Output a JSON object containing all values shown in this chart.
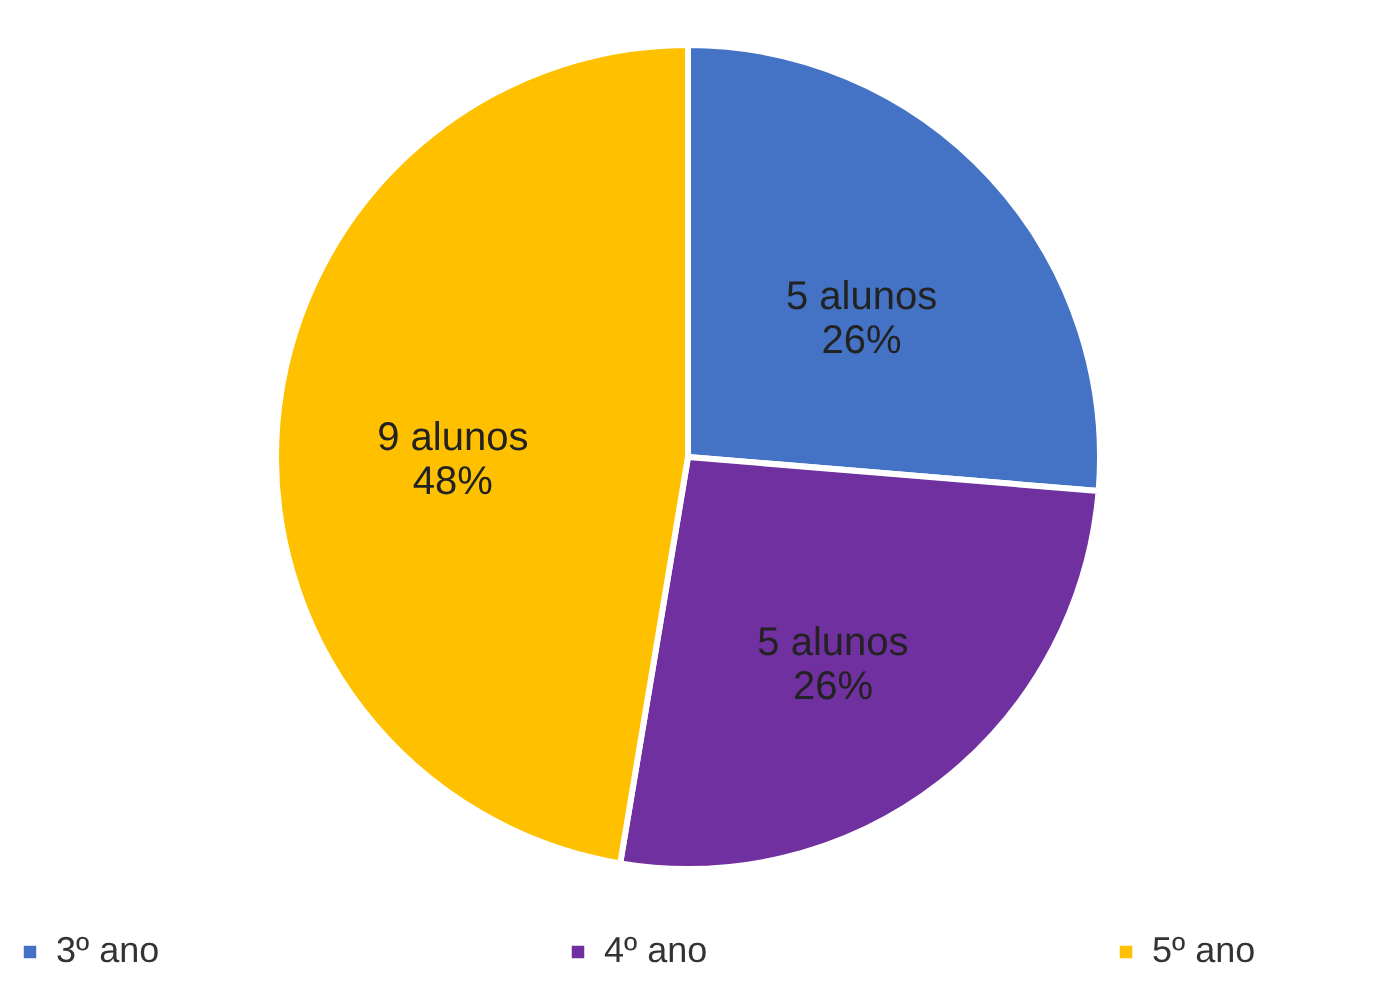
{
  "chart_data": {
    "type": "pie",
    "categories": [
      "3º ano",
      "4º ano",
      "5º ano"
    ],
    "values": [
      5,
      5,
      9
    ],
    "colors": [
      "#4472c4",
      "#7030a0",
      "#ffc000"
    ],
    "value_labels": [
      "5 alunos\n26%",
      "5 alunos\n26%",
      "9 alunos\n48%"
    ],
    "legend": "bottom"
  }
}
